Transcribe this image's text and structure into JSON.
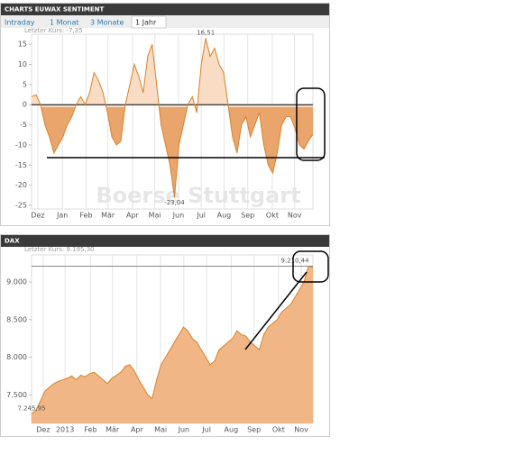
{
  "tabs": [
    "Intraday",
    "1 Monat",
    "3 Monate",
    "1 Jahr"
  ],
  "active_tab": 3,
  "chart_data": [
    {
      "type": "area",
      "title": "CHARTS EUWAX SENTIMENT",
      "subtitle": "Letzter Kurs: -7,35",
      "watermark": "Boerse Stuttgart",
      "values": [
        2,
        2.5,
        0,
        -5,
        -8,
        -12,
        -10,
        -8,
        -5,
        -3,
        0,
        2,
        0,
        3,
        8,
        6,
        3,
        -2,
        -8,
        -10,
        -9,
        0,
        5,
        10,
        7,
        3,
        12,
        15,
        5,
        -5,
        -10,
        -15,
        -23.04,
        -10,
        -5,
        0,
        2,
        -2,
        10,
        16.51,
        12,
        14,
        10,
        8,
        0,
        -8,
        -12,
        -5,
        -3,
        -8,
        -5,
        -2,
        -10,
        -15,
        -17,
        -12,
        -5,
        -3,
        -3,
        -6,
        -10,
        -11,
        -9,
        -7.35
      ],
      "xlim": [
        0,
        63
      ],
      "xticks": [
        {
          "value": 1.4,
          "label": "Dez"
        },
        {
          "value": 6.9,
          "label": "Jan"
        },
        {
          "value": 12.2,
          "label": "Feb"
        },
        {
          "value": 17.1,
          "label": "Mär"
        },
        {
          "value": 22.6,
          "label": "Apr"
        },
        {
          "value": 27.6,
          "label": "Mai"
        },
        {
          "value": 32.9,
          "label": "Jun"
        },
        {
          "value": 38.0,
          "label": "Jul"
        },
        {
          "value": 43.1,
          "label": "Aug"
        },
        {
          "value": 48.4,
          "label": "Sep"
        },
        {
          "value": 53.9,
          "label": "Okt"
        },
        {
          "value": 58.9,
          "label": "Nov"
        }
      ],
      "ylim": [
        -25.9,
        17.5
      ],
      "yticks": [
        15,
        10,
        5,
        0,
        -5,
        -10,
        -15,
        -20,
        -25
      ],
      "color": "#d9822b",
      "fill_above": "#f8dcc3",
      "fill_below": "#e9a56b",
      "annotations": [
        {
          "value": 16.51,
          "label": "16,51"
        },
        {
          "value": -23.04,
          "label": "-23,04"
        }
      ]
    },
    {
      "type": "area",
      "title": "DAX",
      "subtitle": "Letzter Kurs: 9.195,30",
      "watermark": "Boerse Stuttgart",
      "values": [
        7245.95,
        7300,
        7420,
        7550,
        7600,
        7650,
        7680,
        7700,
        7720,
        7750,
        7700,
        7760,
        7740,
        7780,
        7800,
        7750,
        7700,
        7650,
        7720,
        7760,
        7800,
        7880,
        7900,
        7820,
        7700,
        7600,
        7500,
        7450,
        7700,
        7900,
        8000,
        8100,
        8200,
        8300,
        8400,
        8350,
        8250,
        8200,
        8100,
        8000,
        7900,
        7950,
        8100,
        8150,
        8200,
        8250,
        8350,
        8300,
        8280,
        8200,
        8150,
        8100,
        8300,
        8400,
        8450,
        8500,
        8600,
        8650,
        8700,
        8800,
        8900,
        9000,
        9210.44,
        9195.3
      ],
      "xlim": [
        0,
        63
      ],
      "xticks": [
        {
          "value": 2.6,
          "label": "Dez"
        },
        {
          "value": 7.5,
          "label": "2013"
        },
        {
          "value": 13.2,
          "label": "Feb"
        },
        {
          "value": 18.1,
          "label": "Mär"
        },
        {
          "value": 23.6,
          "label": "Apr"
        },
        {
          "value": 28.9,
          "label": "Mai"
        },
        {
          "value": 34.1,
          "label": "Jun"
        },
        {
          "value": 39.2,
          "label": "Jul"
        },
        {
          "value": 44.7,
          "label": "Aug"
        },
        {
          "value": 49.8,
          "label": "Sep"
        },
        {
          "value": 55.3,
          "label": "Okt"
        },
        {
          "value": 60.4,
          "label": "Nov"
        }
      ],
      "ylim": [
        7120,
        9360
      ],
      "yticks": [
        {
          "value": 9000,
          "label": "9.000"
        },
        {
          "value": 8500,
          "label": "8.500"
        },
        {
          "value": 8000,
          "label": "8.000"
        },
        {
          "value": 7500,
          "label": "7.500"
        }
      ],
      "color": "#d9822b",
      "fill_below": "#f0b685",
      "annotations": [
        {
          "value": 9210.44,
          "label": "9.210,44"
        },
        {
          "value": 7245.95,
          "label": "7.245,95"
        }
      ]
    }
  ]
}
